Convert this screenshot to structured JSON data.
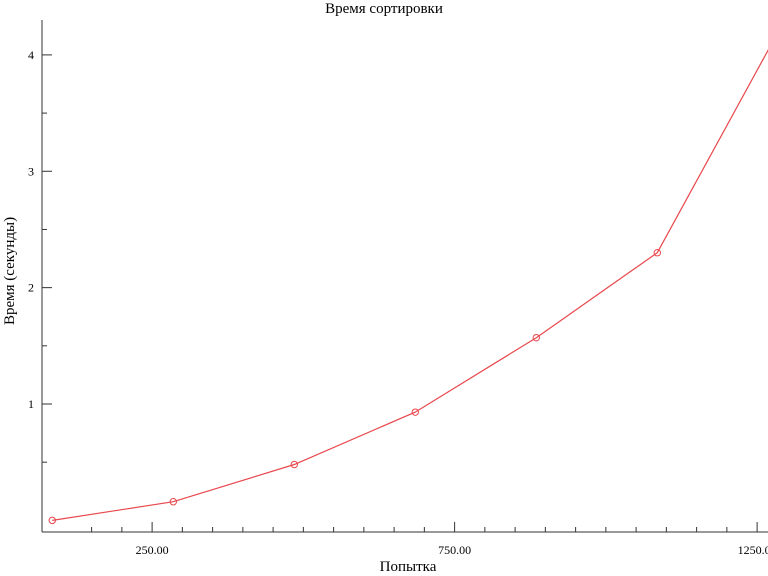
{
  "chart_data": {
    "type": "line",
    "title": "Время сортировки",
    "xlabel": "Попытка",
    "ylabel": "Время (секунды)",
    "xlim": [
      68,
      1268
    ],
    "ylim": [
      -0.1,
      4.3
    ],
    "grid": false,
    "x_ticks": [
      250,
      750,
      1250
    ],
    "x_tick_labels": [
      "250.00",
      "750.00",
      "1250.00"
    ],
    "x_minor_ticks": [
      150,
      200,
      300,
      350,
      400,
      450,
      500,
      550,
      600,
      650,
      700,
      800,
      850,
      900,
      950,
      1000,
      1050,
      1100,
      1150,
      1200
    ],
    "y_ticks": [
      1,
      2,
      3,
      4
    ],
    "y_tick_labels": [
      "1",
      "2",
      "3",
      "4"
    ],
    "y_minor_ticks": [
      0.5,
      1.5,
      2.5,
      3.5
    ],
    "series": [
      {
        "color": "#e8474c",
        "marker": "circle-open",
        "x": [
          85,
          285,
          485,
          685,
          885,
          1085,
          1285
        ],
        "y": [
          0.0,
          0.16,
          0.48,
          0.93,
          1.57,
          2.3,
          4.2
        ]
      }
    ]
  }
}
